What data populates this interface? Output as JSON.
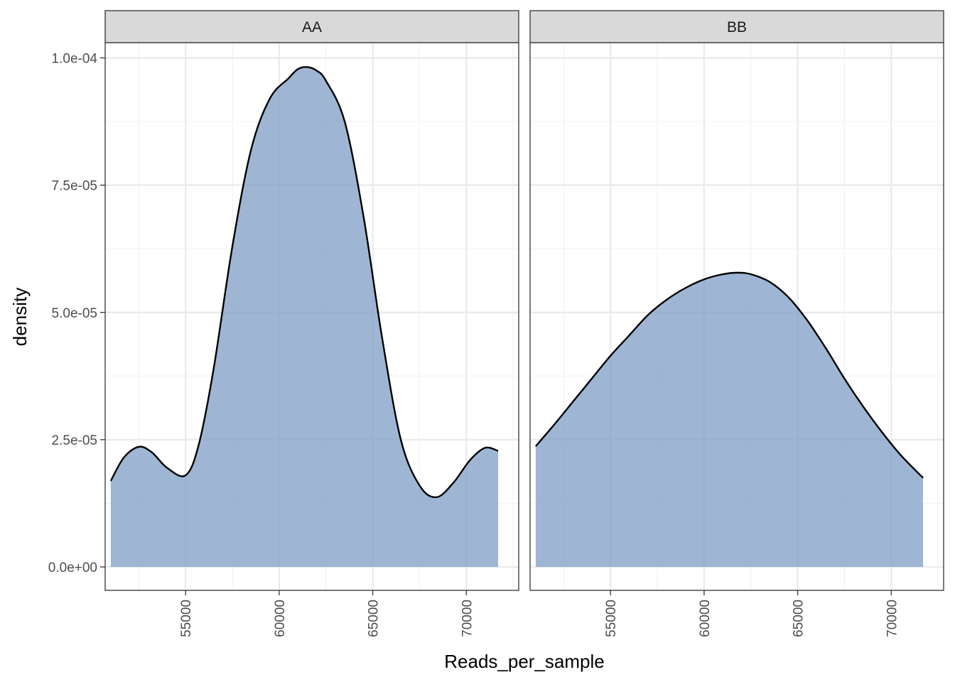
{
  "chart_data": {
    "type": "area",
    "xlabel": "Reads_per_sample",
    "ylabel": "density",
    "xlim": [
      50700,
      72800
    ],
    "ylim": [
      -4.6e-06,
      0.000103
    ],
    "x_ticks": [
      55000,
      60000,
      65000,
      70000
    ],
    "x_tick_labels": [
      "55000",
      "60000",
      "65000",
      "70000"
    ],
    "y_ticks": [
      0,
      2.5e-05,
      5e-05,
      7.5e-05,
      0.0001
    ],
    "y_tick_labels": [
      "0.0e+00",
      "2.5e-05",
      "5.0e-05",
      "7.5e-05",
      "1.0e-04"
    ],
    "grid": true,
    "fill_color": "#7d9ec6",
    "line_color": "#000000",
    "panels": [
      {
        "label": "AA",
        "x": [
          51000,
          51700,
          52500,
          53200,
          54000,
          55000,
          55700,
          56500,
          57500,
          58500,
          59500,
          60500,
          61000,
          61500,
          62000,
          62500,
          63500,
          64500,
          65500,
          66500,
          67500,
          68400,
          69300,
          70200,
          71000,
          71700
        ],
        "y": [
          1.69e-05,
          2.15e-05,
          2.36e-05,
          2.25e-05,
          1.95e-05,
          1.8e-05,
          2.4e-05,
          3.9e-05,
          6.3e-05,
          8.2e-05,
          9.2e-05,
          9.6e-05,
          9.78e-05,
          9.82e-05,
          9.75e-05,
          9.55e-05,
          8.75e-05,
          6.9e-05,
          4.5e-05,
          2.5e-05,
          1.6e-05,
          1.37e-05,
          1.65e-05,
          2.1e-05,
          2.34e-05,
          2.28e-05
        ]
      },
      {
        "label": "BB",
        "x": [
          51000,
          52000,
          53000,
          54000,
          55000,
          56000,
          57000,
          58000,
          59000,
          60000,
          61000,
          61800,
          62500,
          63500,
          64500,
          65500,
          66500,
          67500,
          68500,
          69500,
          70500,
          71700
        ],
        "y": [
          2.37e-05,
          2.8e-05,
          3.25e-05,
          3.7e-05,
          4.15e-05,
          4.55e-05,
          4.95e-05,
          5.25e-05,
          5.48e-05,
          5.65e-05,
          5.75e-05,
          5.78e-05,
          5.75e-05,
          5.6e-05,
          5.3e-05,
          4.85e-05,
          4.3e-05,
          3.7e-05,
          3.15e-05,
          2.65e-05,
          2.2e-05,
          1.75e-05
        ]
      }
    ]
  }
}
